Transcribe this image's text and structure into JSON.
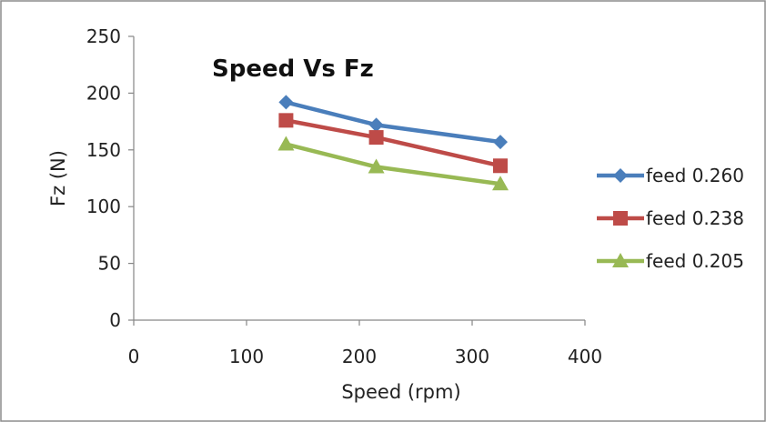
{
  "chart_data": {
    "type": "line",
    "title": "Speed Vs Fz",
    "xlabel": "Speed (rpm)",
    "ylabel": "Fz (N)",
    "xlim": [
      0,
      400
    ],
    "ylim": [
      0,
      250
    ],
    "xticks": [
      "0",
      "100",
      "200",
      "300",
      "400"
    ],
    "yticks": [
      "0",
      "50",
      "100",
      "150",
      "200",
      "250"
    ],
    "grid": false,
    "legend_position": "right",
    "x": [
      135,
      215,
      325
    ],
    "series": [
      {
        "name": "feed 0.260",
        "values": [
          192,
          172,
          157
        ],
        "color": "#4A7EBB",
        "marker": "diamond"
      },
      {
        "name": "feed 0.238",
        "values": [
          176,
          161,
          136
        ],
        "color": "#BE4B48",
        "marker": "square"
      },
      {
        "name": "feed 0.205",
        "values": [
          155,
          135,
          120
        ],
        "color": "#98B954",
        "marker": "triangle"
      }
    ]
  }
}
